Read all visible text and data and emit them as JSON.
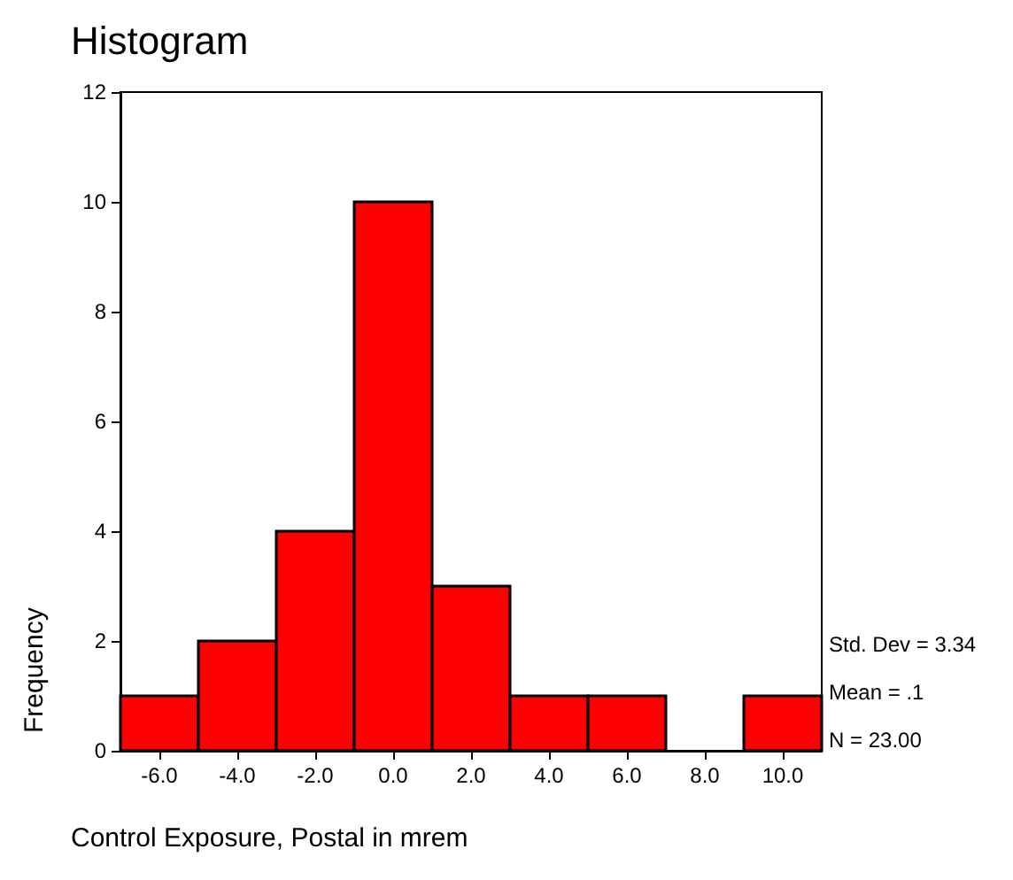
{
  "chart_data": {
    "type": "histogram",
    "title": "Histogram",
    "xlabel": "Control Exposure, Postal in mrem",
    "ylabel": "Frequency",
    "bins": [
      -7,
      -5,
      -3,
      -1,
      1,
      3,
      5,
      7,
      9,
      11
    ],
    "values": [
      1,
      2,
      4,
      10,
      3,
      1,
      1,
      0,
      1
    ],
    "color": "#ff0000",
    "xlim": [
      -7,
      11
    ],
    "xticks": [
      {
        "value": -6,
        "label": "-6.0"
      },
      {
        "value": -4,
        "label": "-4.0"
      },
      {
        "value": -2,
        "label": "-2.0"
      },
      {
        "value": 0,
        "label": "0.0"
      },
      {
        "value": 2,
        "label": "2.0"
      },
      {
        "value": 4,
        "label": "4.0"
      },
      {
        "value": 6,
        "label": "6.0"
      },
      {
        "value": 8,
        "label": "8.0"
      },
      {
        "value": 10,
        "label": "10.0"
      }
    ],
    "ylim": [
      0,
      12
    ],
    "yticks": [
      0,
      2,
      4,
      6,
      8,
      10,
      12
    ],
    "annotations": [
      "Std. Dev = 3.34",
      "Mean = .1",
      "N = 23.00"
    ]
  }
}
